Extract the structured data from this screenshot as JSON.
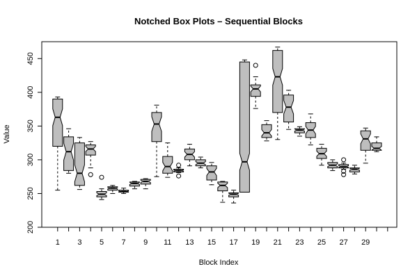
{
  "chart_data": {
    "type": "box",
    "variant": "notched",
    "title": "Notched Box Plots – Sequential Blocks",
    "xlabel": "Block Index",
    "ylabel": "Value",
    "ylim": [
      200,
      475
    ],
    "y_ticks": [
      200,
      250,
      300,
      350,
      400,
      450
    ],
    "x_tick_labels": [
      "1",
      "3",
      "5",
      "7",
      "9",
      "11",
      "13",
      "15",
      "17",
      "19",
      "21",
      "23",
      "25",
      "27",
      "29"
    ],
    "box_color": "#bebebe",
    "boxes": [
      {
        "block": 1,
        "whisker_low": 255,
        "q1": 320,
        "median": 363,
        "q3": 390,
        "whisker_high": 393,
        "outliers": []
      },
      {
        "block": 2,
        "whisker_low": 280,
        "q1": 284,
        "median": 312,
        "q3": 334,
        "whisker_high": 346,
        "outliers": []
      },
      {
        "block": 3,
        "whisker_low": 256,
        "q1": 262,
        "median": 280,
        "q3": 325,
        "whisker_high": 333,
        "outliers": []
      },
      {
        "block": 4,
        "whisker_low": 288,
        "q1": 307,
        "median": 316,
        "q3": 322,
        "whisker_high": 327,
        "outliers": [
          278
        ]
      },
      {
        "block": 5,
        "whisker_low": 241,
        "q1": 245,
        "median": 249,
        "q3": 253,
        "whisker_high": 257,
        "outliers": [
          274
        ]
      },
      {
        "block": 6,
        "whisker_low": 250,
        "q1": 255,
        "median": 258,
        "q3": 260,
        "whisker_high": 262,
        "outliers": []
      },
      {
        "block": 7,
        "whisker_low": 250,
        "q1": 252,
        "median": 253,
        "q3": 255,
        "whisker_high": 258,
        "outliers": []
      },
      {
        "block": 8,
        "whisker_low": 257,
        "q1": 261,
        "median": 265,
        "q3": 267,
        "whisker_high": 268,
        "outliers": []
      },
      {
        "block": 9,
        "whisker_low": 257,
        "q1": 264,
        "median": 268,
        "q3": 271,
        "whisker_high": 272,
        "outliers": []
      },
      {
        "block": 10,
        "whisker_low": 275,
        "q1": 327,
        "median": 353,
        "q3": 370,
        "whisker_high": 381,
        "outliers": []
      },
      {
        "block": 11,
        "whisker_low": 274,
        "q1": 280,
        "median": 290,
        "q3": 305,
        "whisker_high": 325,
        "outliers": []
      },
      {
        "block": 12,
        "whisker_low": 281,
        "q1": 282,
        "median": 284,
        "q3": 286,
        "whisker_high": 288,
        "outliers": [
          276,
          292
        ]
      },
      {
        "block": 13,
        "whisker_low": 291,
        "q1": 300,
        "median": 308,
        "q3": 316,
        "whisker_high": 323,
        "outliers": []
      },
      {
        "block": 14,
        "whisker_low": 288,
        "q1": 291,
        "median": 295,
        "q3": 300,
        "whisker_high": 304,
        "outliers": []
      },
      {
        "block": 15,
        "whisker_low": 263,
        "q1": 270,
        "median": 282,
        "q3": 291,
        "whisker_high": 296,
        "outliers": []
      },
      {
        "block": 16,
        "whisker_low": 237,
        "q1": 254,
        "median": 262,
        "q3": 267,
        "whisker_high": 268,
        "outliers": []
      },
      {
        "block": 17,
        "whisker_low": 236,
        "q1": 245,
        "median": 249,
        "q3": 251,
        "whisker_high": 255,
        "outliers": []
      },
      {
        "block": 18,
        "whisker_low": 252,
        "q1": 252,
        "median": 297,
        "q3": 445,
        "whisker_high": 448,
        "outliers": []
      },
      {
        "block": 19,
        "whisker_low": 376,
        "q1": 394,
        "median": 405,
        "q3": 411,
        "whisker_high": 423,
        "outliers": [
          440
        ]
      },
      {
        "block": 20,
        "whisker_low": 328,
        "q1": 333,
        "median": 340,
        "q3": 352,
        "whisker_high": 358,
        "outliers": []
      },
      {
        "block": 21,
        "whisker_low": 330,
        "q1": 370,
        "median": 423,
        "q3": 462,
        "whisker_high": 467,
        "outliers": []
      },
      {
        "block": 22,
        "whisker_low": 345,
        "q1": 356,
        "median": 378,
        "q3": 396,
        "whisker_high": 403,
        "outliers": []
      },
      {
        "block": 23,
        "whisker_low": 335,
        "q1": 340,
        "median": 344,
        "q3": 346,
        "whisker_high": 349,
        "outliers": []
      },
      {
        "block": 24,
        "whisker_low": 322,
        "q1": 333,
        "median": 344,
        "q3": 355,
        "whisker_high": 368,
        "outliers": []
      },
      {
        "block": 25,
        "whisker_low": 292,
        "q1": 302,
        "median": 309,
        "q3": 317,
        "whisker_high": 323,
        "outliers": []
      },
      {
        "block": 26,
        "whisker_low": 284,
        "q1": 288,
        "median": 292,
        "q3": 296,
        "whisker_high": 300,
        "outliers": []
      },
      {
        "block": 27,
        "whisker_low": 286,
        "q1": 288,
        "median": 290,
        "q3": 293,
        "whisker_high": 295,
        "outliers": [
          278,
          283,
          300
        ]
      },
      {
        "block": 28,
        "whisker_low": 279,
        "q1": 282,
        "median": 286,
        "q3": 288,
        "whisker_high": 292,
        "outliers": []
      },
      {
        "block": 29,
        "whisker_low": 295,
        "q1": 314,
        "median": 331,
        "q3": 343,
        "whisker_high": 347,
        "outliers": []
      },
      {
        "block": 30,
        "whisker_low": 312,
        "q1": 314,
        "median": 317,
        "q3": 325,
        "whisker_high": 334,
        "outliers": []
      }
    ]
  }
}
